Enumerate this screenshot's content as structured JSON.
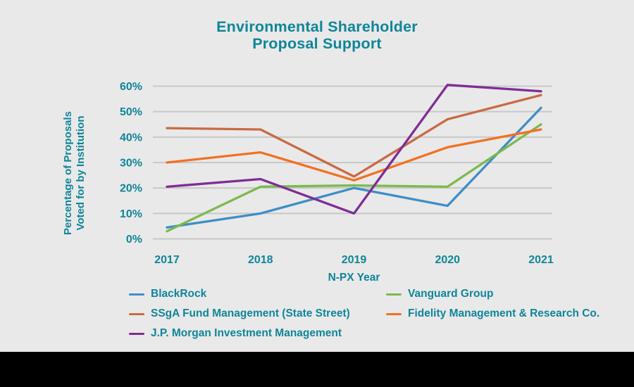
{
  "colors": {
    "background": "#E9E9E9",
    "text_teal": "#0F8599",
    "gridline": "#C8C8C8",
    "footer_bar": "#000000"
  },
  "legend": {
    "items": [
      {
        "label": "BlackRock",
        "color": "#3E8EC6"
      },
      {
        "label": "SSgA Fund Management (State Street)",
        "color": "#C96A45"
      },
      {
        "label": "J.P. Morgan Investment Management",
        "color": "#7F2D96"
      },
      {
        "label": "Vanguard Group",
        "color": "#7CB94E"
      },
      {
        "label": "Fidelity Management & Research Co.",
        "color": "#F37021"
      }
    ]
  },
  "chart_data": {
    "type": "line",
    "title": "Environmental Shareholder\nProposal Support",
    "xlabel": "N-PX Year",
    "ylabel": "Percentage of Proposals\nVoted for by Institution",
    "x": [
      2017,
      2018,
      2019,
      2020,
      2021
    ],
    "xtick_labels": [
      "2017",
      "2018",
      "2019",
      "2020",
      "2021"
    ],
    "yticks": [
      0,
      10,
      20,
      30,
      40,
      50,
      60
    ],
    "ytick_labels": [
      "0%",
      "10%",
      "20%",
      "30%",
      "40%",
      "50%",
      "60%"
    ],
    "ylim": [
      0,
      62
    ],
    "grid": true,
    "legend_position": "bottom",
    "series": [
      {
        "name": "BlackRock",
        "color": "#3E8EC6",
        "values": [
          4.5,
          10,
          20,
          13,
          51.5
        ]
      },
      {
        "name": "Vanguard Group",
        "color": "#7CB94E",
        "values": [
          3,
          20.5,
          21,
          20.5,
          45
        ]
      },
      {
        "name": "SSgA Fund Management (State Street)",
        "color": "#C96A45",
        "values": [
          43.5,
          43,
          24.5,
          47,
          56.5
        ]
      },
      {
        "name": "Fidelity Management & Research Co.",
        "color": "#F37021",
        "values": [
          30,
          34,
          23,
          36,
          43
        ]
      },
      {
        "name": "J.P. Morgan Investment Management",
        "color": "#7F2D96",
        "values": [
          20.5,
          23.5,
          10,
          60.5,
          58
        ]
      }
    ]
  }
}
